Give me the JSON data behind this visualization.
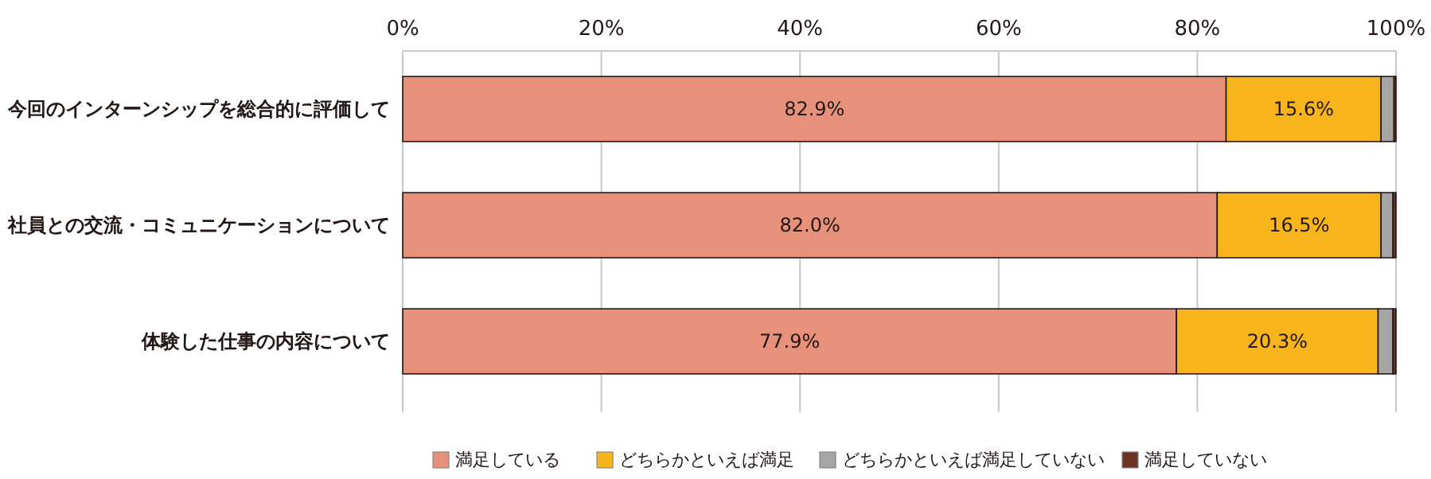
{
  "chart_data": {
    "type": "bar",
    "orientation": "horizontal",
    "stacked": true,
    "categories": [
      "今回のインターンシップを総合的に評価して",
      "社員との交流・コミュニケーションについて",
      "体験した仕事の内容について"
    ],
    "series": [
      {
        "name": "満足している",
        "color": "#e8917a",
        "values": [
          82.9,
          82.0,
          77.9
        ],
        "value_labels": [
          "82.9%",
          "82.0%",
          "77.9%"
        ]
      },
      {
        "name": "どちらかといえば満足",
        "color": "#f8b51b",
        "values": [
          15.6,
          16.5,
          20.3
        ],
        "value_labels": [
          "15.6%",
          "16.5%",
          "20.3%"
        ]
      },
      {
        "name": "どちらかといえば満足していない",
        "color": "#a5a5a5",
        "values": [
          1.3,
          1.2,
          1.5
        ]
      },
      {
        "name": "満足していない",
        "color": "#6b3422",
        "values": [
          0.2,
          0.3,
          0.3
        ]
      }
    ],
    "xlim": [
      0,
      100
    ],
    "xticks": [
      {
        "value": 0,
        "label": "0%"
      },
      {
        "value": 20,
        "label": "20%"
      },
      {
        "value": 40,
        "label": "40%"
      },
      {
        "value": 60,
        "label": "60%"
      },
      {
        "value": 80,
        "label": "80%"
      },
      {
        "value": 100,
        "label": "100%"
      }
    ],
    "grid": "x",
    "legend": "bottom"
  }
}
